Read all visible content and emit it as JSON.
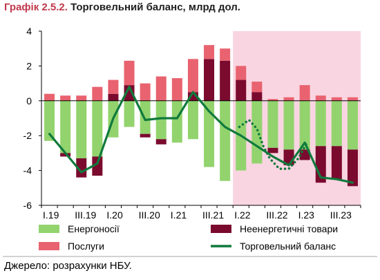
{
  "header": {
    "figure_number": "Графік 2.5.2.",
    "title": "Торговельний баланс, млрд дол."
  },
  "source": "Джерело: розрахунки НБУ.",
  "colors": {
    "energy": "#92D36E",
    "nonenergy": "#7A0A2E",
    "services": "#E8636F",
    "balance": "#107A3C",
    "shade": "#F9D5E1",
    "axis": "#000000",
    "grid": "#DDDDDD"
  },
  "chart_data": {
    "type": "bar",
    "stacked": true,
    "title": "Торговельний баланс, млрд дол.",
    "ylim": [
      -6,
      4
    ],
    "yticks": [
      4,
      2,
      0,
      -2,
      -4,
      -6
    ],
    "x_tick_labels": [
      "I.19",
      "III.19",
      "I.20",
      "III.20",
      "I.21",
      "III.21",
      "I.22",
      "III.22",
      "I.23",
      "III.23"
    ],
    "x_tick_positions": [
      0,
      2,
      4,
      6,
      8,
      10,
      12,
      14,
      16,
      18
    ],
    "shaded_from_index": 12,
    "categories": [
      "I.19",
      "II.19",
      "III.19",
      "IV.19",
      "I.20",
      "II.20",
      "III.20",
      "IV.20",
      "I.21",
      "II.21",
      "III.21",
      "IV.21",
      "I.22",
      "II.22",
      "III.22",
      "IV.22",
      "I.23",
      "II.23",
      "III.23",
      "IV.23"
    ],
    "series": [
      {
        "name": "Енергоносії",
        "key": "energy",
        "values": [
          -2.3,
          -3.0,
          -3.3,
          -3.2,
          -2.1,
          -1.5,
          -1.9,
          -2.2,
          -2.4,
          -2.2,
          -3.8,
          -4.6,
          -4.0,
          -3.6,
          -2.7,
          -2.8,
          -2.8,
          -2.6,
          -2.6,
          -2.8
        ]
      },
      {
        "name": "Неенергетичні товари",
        "key": "nonenergy",
        "values": [
          0.0,
          -0.2,
          -1.1,
          -1.1,
          0.4,
          0.9,
          -0.2,
          -0.3,
          0.0,
          0.5,
          2.4,
          2.3,
          1.2,
          0.5,
          -0.3,
          -0.9,
          -0.6,
          -2.1,
          -1.9,
          -2.1
        ]
      },
      {
        "name": "Послуги",
        "key": "services",
        "values": [
          0.4,
          0.3,
          0.3,
          0.8,
          0.8,
          1.4,
          1.0,
          1.4,
          1.3,
          1.9,
          0.8,
          0.7,
          0.8,
          0.6,
          0.1,
          0.2,
          0.9,
          0.3,
          0.2,
          0.2
        ]
      },
      {
        "name": "Торговельний баланс",
        "key": "balance",
        "type": "line",
        "values": [
          -1.9,
          -3.0,
          -4.1,
          -3.6,
          -1.0,
          0.8,
          -1.1,
          -1.0,
          -1.0,
          0.5,
          -0.6,
          -1.5,
          -2.0,
          -2.6,
          -3.2,
          -3.7,
          -2.4,
          -4.4,
          -4.5,
          -4.7
        ]
      }
    ],
    "dotted_line": {
      "index": [
        11.9,
        12.5,
        13.0,
        13.4,
        13.8,
        14.4,
        15.0,
        15.6,
        16.2
      ],
      "values": [
        -1.5,
        -1.1,
        -1.6,
        -2.6,
        -3.3,
        -3.9,
        -3.9,
        -3.3,
        -2.3
      ]
    },
    "legend": {
      "position": "bottom",
      "items": [
        {
          "label": "Енергоносії",
          "key": "energy",
          "shape": "rect"
        },
        {
          "label": "Неенергетичні товари",
          "key": "nonenergy",
          "shape": "rect"
        },
        {
          "label": "Послуги",
          "key": "services",
          "shape": "rect"
        },
        {
          "label": "Торговельний баланс",
          "key": "balance",
          "shape": "line"
        }
      ]
    }
  }
}
